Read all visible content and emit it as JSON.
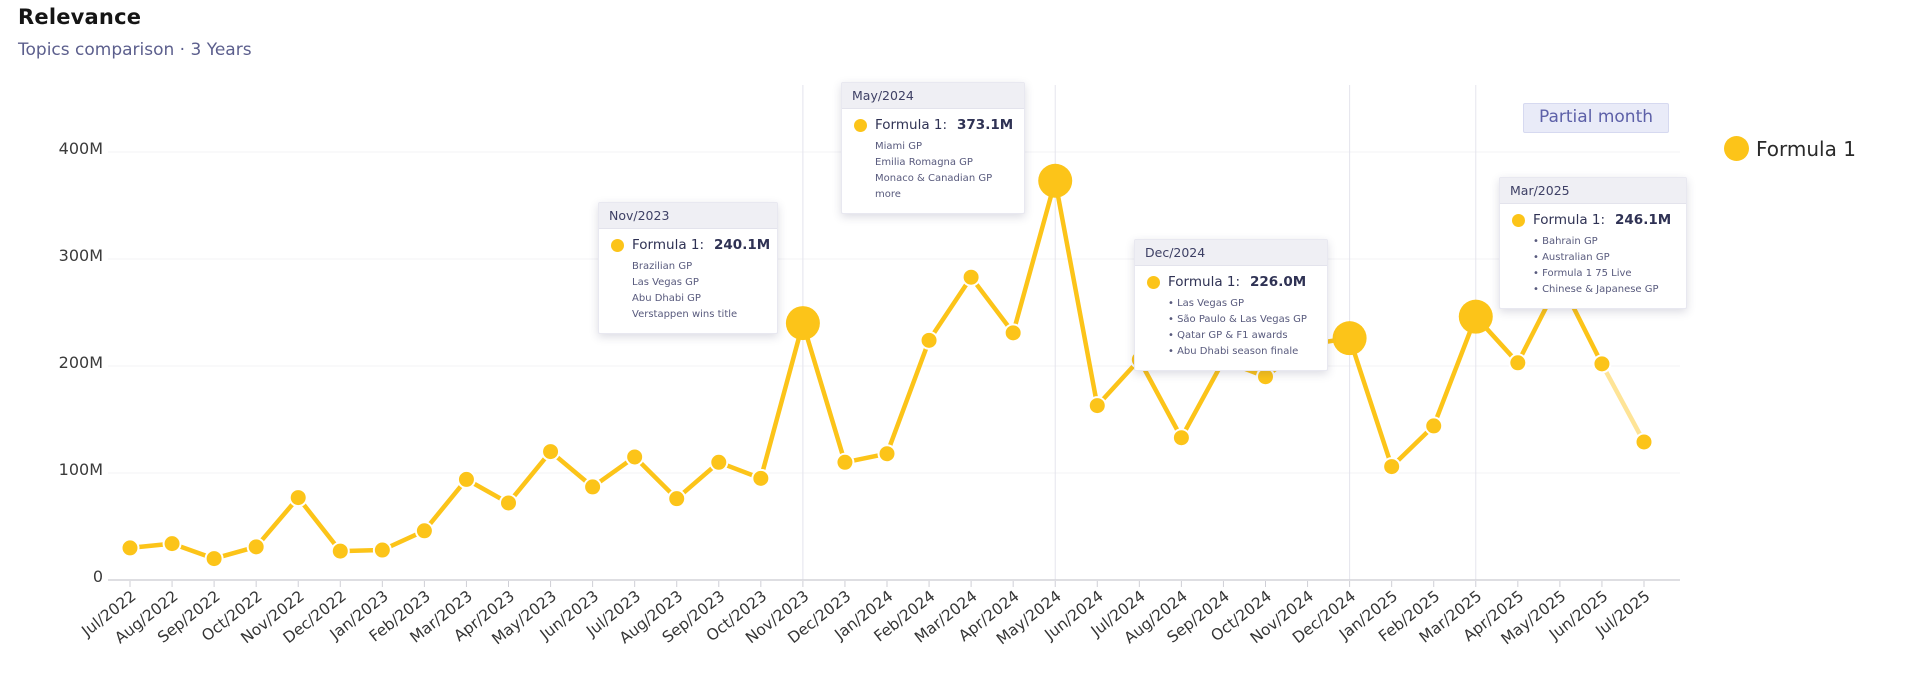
{
  "header": {
    "title": "Relevance",
    "subtitle": "Topics comparison · 3 Years"
  },
  "badge": {
    "label": "Partial month"
  },
  "legend": {
    "series_label": "Formula 1"
  },
  "colors": {
    "accent": "#FCC419",
    "subtitle_text": "#5C5F8D",
    "badge_bg": "#E9EBF8",
    "badge_text": "#5D60A8",
    "axis_text": "#3B3B3B",
    "tooltip_header_bg": "#EFEFF4",
    "tooltip_text": "#2F3254"
  },
  "chart_data": {
    "type": "line",
    "title": "Relevance",
    "subtitle": "Topics comparison · 3 Years",
    "unit": "M",
    "xlabel": "",
    "ylabel": "",
    "ylim": [
      0,
      430
    ],
    "yticks": [
      {
        "value": 0,
        "label": "0"
      },
      {
        "value": 100,
        "label": "100M"
      },
      {
        "value": 200,
        "label": "200M"
      },
      {
        "value": 300,
        "label": "300M"
      },
      {
        "value": 400,
        "label": "400M"
      }
    ],
    "grid": "horizontal-faint",
    "legend_position": "top-right",
    "x": [
      "Jul/2022",
      "Aug/2022",
      "Sep/2022",
      "Oct/2022",
      "Nov/2022",
      "Dec/2022",
      "Jan/2023",
      "Feb/2023",
      "Mar/2023",
      "Apr/2023",
      "May/2023",
      "Jun/2023",
      "Jul/2023",
      "Aug/2023",
      "Sep/2023",
      "Oct/2023",
      "Nov/2023",
      "Dec/2023",
      "Jan/2024",
      "Feb/2024",
      "Mar/2024",
      "Apr/2024",
      "May/2024",
      "Jun/2024",
      "Jul/2024",
      "Aug/2024",
      "Sep/2024",
      "Oct/2024",
      "Nov/2024",
      "Dec/2024",
      "Jan/2025",
      "Feb/2025",
      "Mar/2025",
      "Apr/2025",
      "May/2025",
      "Jun/2025",
      "Jul/2025"
    ],
    "series": [
      {
        "name": "Formula 1",
        "color": "#FCC419",
        "values": [
          30,
          34,
          20,
          31,
          77,
          27,
          28,
          46,
          94,
          72,
          120,
          87,
          115,
          76,
          110,
          95,
          240.1,
          110,
          118,
          224,
          283,
          231,
          373.1,
          163,
          206,
          133,
          205,
          190,
          220,
          226,
          106,
          144,
          246.1,
          203,
          280,
          202,
          129
        ]
      }
    ],
    "highlighted_months": [
      "Nov/2023",
      "May/2024",
      "Dec/2024",
      "Mar/2025"
    ],
    "partial_month": "Jul/2025"
  },
  "tooltips": [
    {
      "month": "Nov/2023",
      "label": "Formula 1:",
      "value": "240.1M",
      "bulleted": false,
      "items": [
        "Brazilian GP",
        "Las Vegas GP",
        "Abu Dhabi GP",
        "Verstappen wins title"
      ]
    },
    {
      "month": "May/2024",
      "label": "Formula 1:",
      "value": "373.1M",
      "bulleted": false,
      "items": [
        "Miami GP",
        "Emilia Romagna GP",
        "Monaco & Canadian GP",
        "more"
      ]
    },
    {
      "month": "Dec/2024",
      "label": "Formula 1:",
      "value": "226.0M",
      "bulleted": true,
      "items": [
        "Las Vegas GP",
        "São Paulo & Las Vegas GP",
        "Qatar GP & F1 awards",
        "Abu Dhabi season finale"
      ]
    },
    {
      "month": "Mar/2025",
      "label": "Formula 1:",
      "value": "246.1M",
      "bulleted": true,
      "items": [
        "Bahrain GP",
        "Australian GP",
        "Formula 1 75 Live",
        "Chinese & Japanese GP"
      ]
    }
  ]
}
